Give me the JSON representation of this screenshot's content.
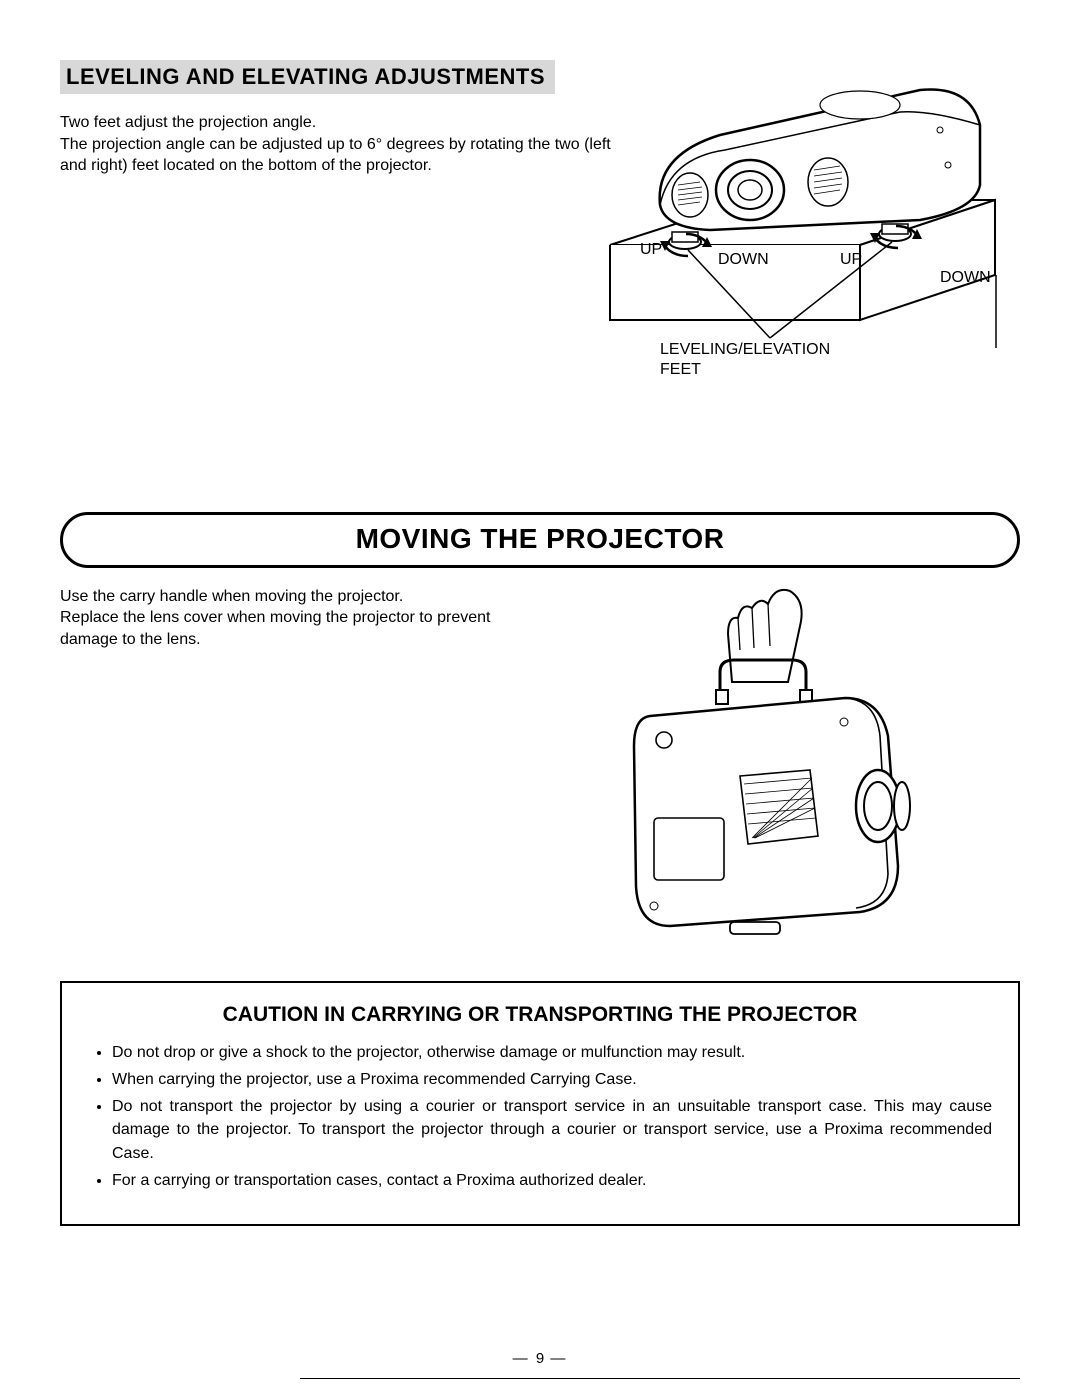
{
  "section1": {
    "heading": "LEVELING AND ELEVATING ADJUSTMENTS",
    "body_line1": "Two feet adjust the projection angle.",
    "body_line2": "The projection angle can be adjusted up to 6°  degrees by rotating the two (left and right) feet located on the bottom of the projector."
  },
  "fig1_labels": {
    "up1": "UP",
    "down1": "DOWN",
    "up2": "UP",
    "down2": "DOWN",
    "feet_line1": "LEVELING/ELEVATION",
    "feet_line2": "FEET"
  },
  "section2": {
    "heading": "MOVING THE PROJECTOR",
    "body": "Use the carry handle when moving the projector.\nReplace the lens cover when moving the projector to prevent damage to the lens."
  },
  "caution": {
    "title": "CAUTION IN CARRYING OR TRANSPORTING THE PROJECTOR",
    "items": [
      "Do not drop or give a shock to the projector, otherwise damage or mulfunction may result.",
      "When carrying the projector, use a Proxima recommended Carrying Case.",
      "Do not transport the projector by using a courier or transport service in an unsuitable transport case. This may cause damage to the projector. To transport the projector through a courier or transport service, use a Proxima recommended Case.",
      "For a carrying or transportation cases, contact a Proxima authorized dealer."
    ]
  },
  "page_number": "9",
  "style": {
    "heading_bg": "#d8d8d8",
    "text_color": "#000000",
    "page_bg": "#ffffff",
    "body_fontsize": 16,
    "heading_fontsize": 22,
    "band_fontsize": 28,
    "caution_title_fontsize": 21,
    "border_color": "#000000",
    "band_border_radius": 28,
    "caution_border_width": 2,
    "band_border_width": 3
  }
}
